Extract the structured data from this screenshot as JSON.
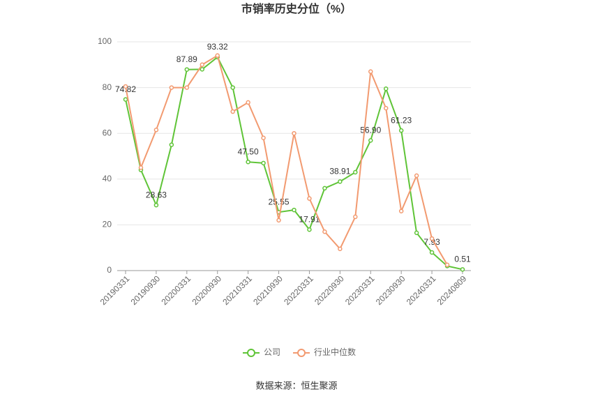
{
  "chart_data": {
    "type": "line",
    "title": "市销率历史分位（%）",
    "source": "数据来源：恒生聚源",
    "categories": [
      "20190331",
      null,
      "20190930",
      null,
      "20200331",
      null,
      "20200930",
      null,
      "20210331",
      null,
      "20210930",
      null,
      "20220331",
      null,
      "20220930",
      null,
      "20230331",
      null,
      "20230930",
      null,
      "20240331",
      null,
      "20240809"
    ],
    "series": [
      {
        "name": "公司",
        "color": "#5fc437",
        "values": [
          74.82,
          44,
          28.63,
          55,
          87.89,
          88,
          93.32,
          80,
          47.5,
          47,
          25.55,
          26.5,
          17.91,
          36,
          38.91,
          43,
          56.9,
          79.5,
          61.23,
          16.5,
          7.93,
          2,
          0.51
        ],
        "value_labels": [
          "74.82",
          null,
          "28.63",
          null,
          "87.89",
          null,
          "93.32",
          null,
          "47.50",
          null,
          "25.55",
          null,
          "17.91",
          null,
          "38.91",
          null,
          "56.90",
          null,
          "61.23",
          null,
          "7.93",
          null,
          "0.51"
        ]
      },
      {
        "name": "行业中位数",
        "color": "#f29a70",
        "values": [
          80.5,
          45,
          61.5,
          80,
          80,
          90,
          94,
          69.5,
          73.5,
          58,
          22,
          60,
          31.5,
          17,
          9.5,
          23.5,
          87,
          71,
          26,
          41.5,
          14,
          2.5,
          null
        ]
      }
    ],
    "ylim": [
      0,
      100
    ],
    "yticks": [
      0,
      20,
      40,
      60,
      80,
      100
    ],
    "grid": true
  }
}
